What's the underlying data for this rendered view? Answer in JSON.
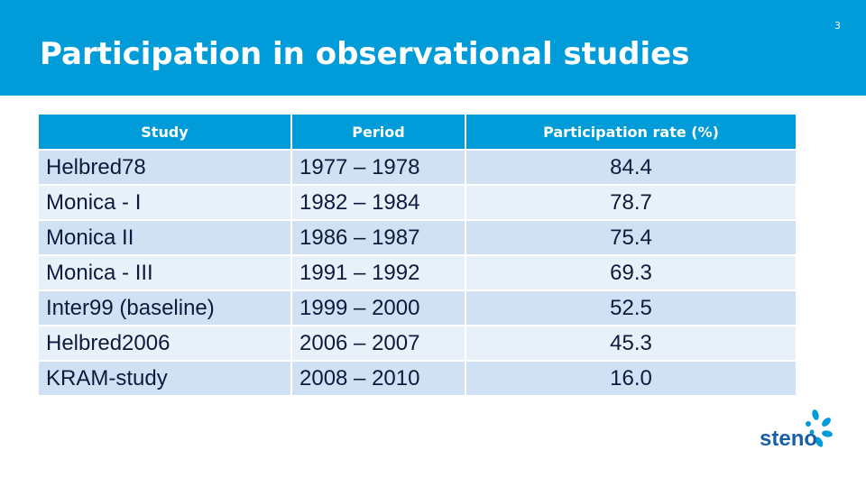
{
  "slide": {
    "title": "Participation in observational studies",
    "number": "3"
  },
  "table": {
    "headers": [
      "Study",
      "Period",
      "Participation rate (%)"
    ],
    "rows": [
      {
        "study": "Helbred78",
        "period": "1977 – 1978",
        "rate": "84.4"
      },
      {
        "study": "Monica - I",
        "period": "1982 – 1984",
        "rate": "78.7"
      },
      {
        "study": "Monica II",
        "period": "1986 – 1987",
        "rate": "75.4"
      },
      {
        "study": "Monica - III",
        "period": "1991 – 1992",
        "rate": "69.3"
      },
      {
        "study": "Inter99 (baseline)",
        "period": "1999 – 2000",
        "rate": "52.5"
      },
      {
        "study": "Helbred2006",
        "period": "2006 – 2007",
        "rate": "45.3"
      },
      {
        "study": "KRAM-study",
        "period": "2008 – 2010",
        "rate": "16.0"
      }
    ]
  },
  "logo": {
    "text": "steno",
    "icon": "steno-flower-logo",
    "color": "#1a5ea8",
    "accent": "#009bd9"
  },
  "colors": {
    "header_bg": "#009bd9",
    "row_odd": "#cfe1f2",
    "row_even": "#e8f1fa"
  }
}
